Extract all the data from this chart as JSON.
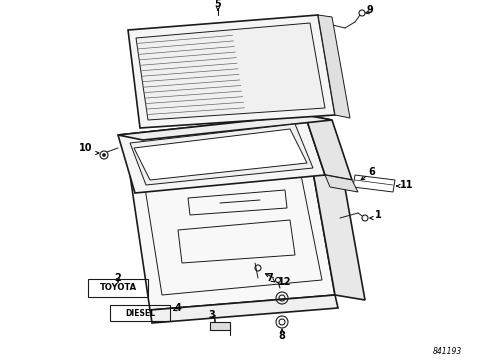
{
  "bg_color": "#ffffff",
  "diagram_code": "841193",
  "toyota_label": "TOYOTA",
  "diesel_label": "DIESEL",
  "line_color": "#1a1a1a",
  "lw_main": 1.2,
  "lw_thin": 0.7,
  "fs_label": 7
}
